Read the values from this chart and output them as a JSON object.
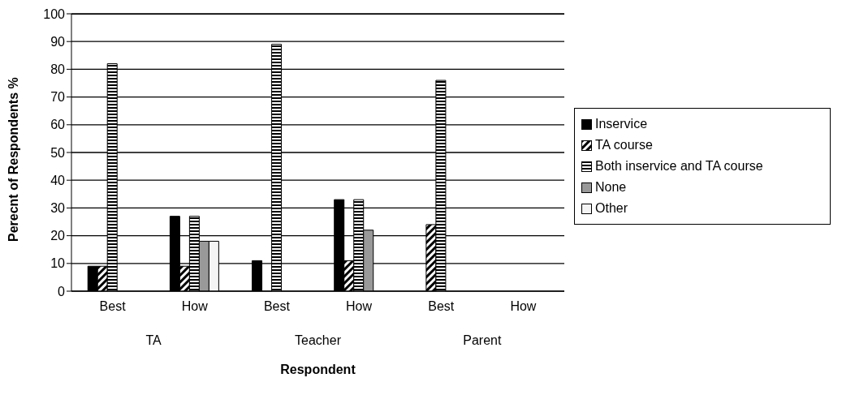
{
  "chart_data": {
    "type": "bar",
    "categories": [
      "Best",
      "How",
      "Best",
      "How",
      "Best",
      "How"
    ],
    "annotations": [
      "TA",
      "Teacher",
      "Parent"
    ],
    "xlabel": "Respondent",
    "ylabel": "Perecnt of Respondents %",
    "series": [
      {
        "name": "Inservice",
        "color": "#000000",
        "values": [
          9,
          27,
          11,
          33,
          0,
          0
        ]
      },
      {
        "name": "TA course",
        "color": "#000000",
        "values": [
          9,
          9,
          0,
          11,
          24,
          0
        ]
      },
      {
        "name": "Both inservice and TA course",
        "color": "#000000",
        "values": [
          82,
          27,
          89,
          33,
          76,
          0
        ]
      },
      {
        "name": "None",
        "color": "#999999",
        "values": [
          0,
          18,
          0,
          22,
          0,
          0
        ]
      },
      {
        "name": "Other",
        "color": "#f4f4f4",
        "values": [
          0,
          18,
          0,
          0,
          0,
          0
        ]
      }
    ],
    "ylim": [
      0,
      100
    ],
    "yticks": [
      0,
      10,
      20,
      30,
      40,
      50,
      60,
      70,
      80,
      90,
      100
    ],
    "grid": "y",
    "legend": "right"
  }
}
